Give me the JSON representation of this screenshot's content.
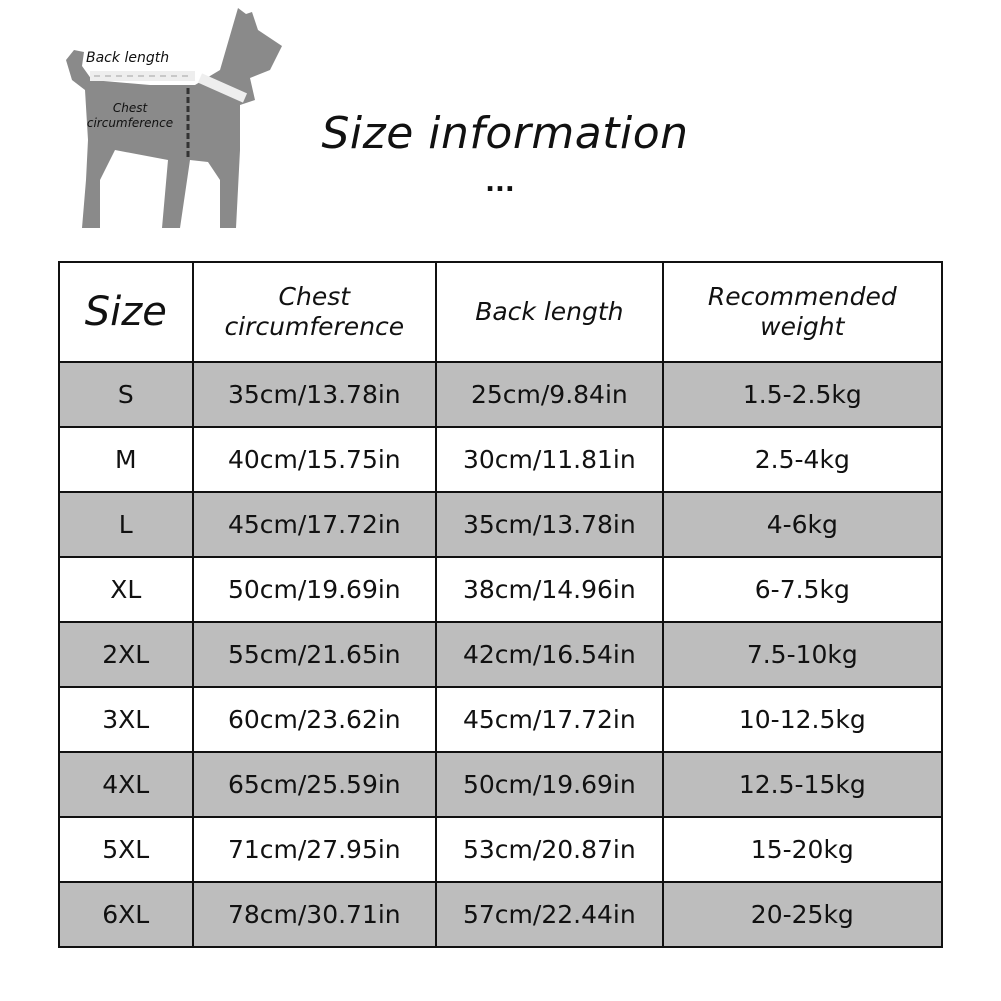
{
  "diagram": {
    "back_length_label": "Back length",
    "chest_label_1": "Chest",
    "chest_label_2": "circumference"
  },
  "title": "Size information",
  "ellipsis": "...",
  "table": {
    "headers": [
      "Size",
      "Chest circumference",
      "Back length",
      "Recommended weight"
    ],
    "rows": [
      [
        "S",
        "35cm/13.78in",
        "25cm/9.84in",
        "1.5-2.5kg"
      ],
      [
        "M",
        "40cm/15.75in",
        "30cm/11.81in",
        "2.5-4kg"
      ],
      [
        "L",
        "45cm/17.72in",
        "35cm/13.78in",
        "4-6kg"
      ],
      [
        "XL",
        "50cm/19.69in",
        "38cm/14.96in",
        "6-7.5kg"
      ],
      [
        "2XL",
        "55cm/21.65in",
        "42cm/16.54in",
        "7.5-10kg"
      ],
      [
        "3XL",
        "60cm/23.62in",
        "45cm/17.72in",
        "10-12.5kg"
      ],
      [
        "4XL",
        "65cm/25.59in",
        "50cm/19.69in",
        "12.5-15kg"
      ],
      [
        "5XL",
        "71cm/27.95in",
        "53cm/20.87in",
        "15-20kg"
      ],
      [
        "6XL",
        "78cm/30.71in",
        "57cm/22.44in",
        "20-25kg"
      ]
    ]
  },
  "colors": {
    "shaded_row": "#bdbdbd",
    "dog": "#8a8a8a"
  }
}
